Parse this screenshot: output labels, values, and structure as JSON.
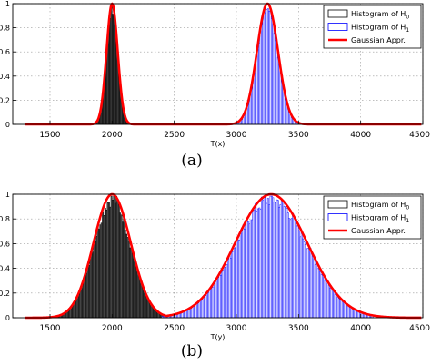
{
  "figure": {
    "captions": [
      "(a)",
      "(b)"
    ]
  },
  "chart_data": [
    {
      "type": "bar",
      "panel": "(a)",
      "xlabel": "T(x)",
      "ylabel": "",
      "xlim": [
        1200,
        4500
      ],
      "ylim": [
        0,
        1
      ],
      "xticks": [
        1500,
        2000,
        2500,
        3000,
        3500,
        4000,
        4500
      ],
      "yticks": [
        0,
        0.2,
        0.4,
        0.6,
        0.8,
        1
      ],
      "grid": true,
      "legend_position": "top-right",
      "legend": [
        {
          "label": "Histogram of H",
          "sub": "0",
          "kind": "box",
          "color": "#000000"
        },
        {
          "label": "Histogram of H",
          "sub": "1",
          "kind": "box",
          "color": "#0000ff"
        },
        {
          "label": "Gaussian Appr.",
          "sub": "",
          "kind": "line",
          "color": "#ff0000"
        }
      ],
      "series": [
        {
          "legend_index": 0,
          "kind": "histogram",
          "fill": "#444444",
          "stroke": "#000000",
          "mean": 2000,
          "sd": 45,
          "from": 1830,
          "to": 2170,
          "bin": 10
        },
        {
          "legend_index": 1,
          "kind": "histogram",
          "fill": "#ffffff",
          "stroke": "#0000ff",
          "mean": 3250,
          "sd": 85,
          "from": 2960,
          "to": 3540,
          "bin": 10
        },
        {
          "legend_index": 2,
          "kind": "gaussian",
          "color": "#ff0000",
          "means": [
            2000,
            3250
          ],
          "sds": [
            45,
            85
          ],
          "peak": 1
        }
      ]
    },
    {
      "type": "bar",
      "panel": "(b)",
      "xlabel": "T(y)",
      "ylabel": "",
      "xlim": [
        1200,
        4500
      ],
      "ylim": [
        0,
        1
      ],
      "xticks": [
        1500,
        2000,
        2500,
        3000,
        3500,
        4000,
        4500
      ],
      "yticks": [
        0,
        0.2,
        0.4,
        0.6,
        0.8,
        1
      ],
      "grid": true,
      "legend_position": "top-right",
      "legend": [
        {
          "label": "Histogram of H",
          "sub": "0",
          "kind": "box",
          "color": "#000000"
        },
        {
          "label": "Histogram of H",
          "sub": "1",
          "kind": "box",
          "color": "#0000ff"
        },
        {
          "label": "Gaussian Appr.",
          "sub": "",
          "kind": "line",
          "color": "#ff0000"
        }
      ],
      "series": [
        {
          "legend_index": 0,
          "kind": "histogram",
          "fill": "#555555",
          "stroke": "#000000",
          "mean": 2000,
          "sd": 150,
          "from": 1520,
          "to": 2480,
          "bin": 10
        },
        {
          "legend_index": 1,
          "kind": "histogram",
          "fill": "#ffffff",
          "stroke": "#0000ff",
          "mean": 3280,
          "sd": 290,
          "from": 2400,
          "to": 4100,
          "bin": 10
        },
        {
          "legend_index": 2,
          "kind": "gaussian",
          "color": "#ff0000",
          "means": [
            2000,
            3280
          ],
          "sds": [
            150,
            290
          ],
          "peak": 1
        }
      ]
    }
  ]
}
